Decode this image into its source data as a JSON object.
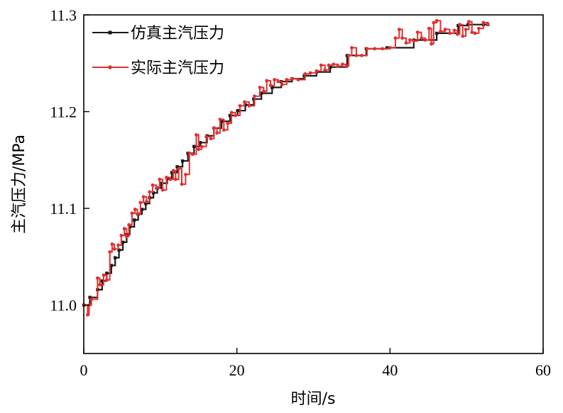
{
  "chart_data": {
    "type": "line",
    "xlabel": "时间/s",
    "ylabel": "主汽压力/MPa",
    "xlim": [
      0,
      60
    ],
    "ylim": [
      10.95,
      11.3
    ],
    "xticks": [
      0,
      20,
      40,
      60
    ],
    "yticks": [
      11.0,
      11.1,
      11.2,
      11.3
    ],
    "xtick_labels": [
      "0",
      "20",
      "40",
      "60"
    ],
    "ytick_labels": [
      "11.0",
      "11.1",
      "11.2",
      "11.3"
    ],
    "grid": false,
    "legend_position": "top-left",
    "series": [
      {
        "name": "仿真主汽压力",
        "color": "#1a1a1a",
        "step": true,
        "x": [
          0,
          0.8,
          1.8,
          2.4,
          3.0,
          3.6,
          4.1,
          4.6,
          5.1,
          5.6,
          6.0,
          6.6,
          7.1,
          7.6,
          8.1,
          8.6,
          9.1,
          9.6,
          10.1,
          10.9,
          11.5,
          12.2,
          12.9,
          13.6,
          14.4,
          15.2,
          16.1,
          17.0,
          18.0,
          19.1,
          20.1,
          21.1,
          22.2,
          23.2,
          24.6,
          25.8,
          27.2,
          28.8,
          30.4,
          32.2,
          34.4,
          36.9,
          39.6,
          43.1,
          46.1,
          48.9,
          50.2,
          52.2,
          52.8
        ],
        "y": [
          11.0,
          11.008,
          11.016,
          11.025,
          11.033,
          11.041,
          11.049,
          11.057,
          11.065,
          11.073,
          11.081,
          11.088,
          11.094,
          11.099,
          11.105,
          11.111,
          11.116,
          11.121,
          11.126,
          11.131,
          11.137,
          11.143,
          11.149,
          11.157,
          11.164,
          11.168,
          11.175,
          11.183,
          11.19,
          11.196,
          11.201,
          11.207,
          11.213,
          11.219,
          11.225,
          11.231,
          11.234,
          11.237,
          11.241,
          11.246,
          11.258,
          11.265,
          11.266,
          11.274,
          11.281,
          11.289,
          11.29,
          11.29,
          11.29
        ]
      },
      {
        "name": "实际主汽压力",
        "color": "#e03030",
        "step": true,
        "x": [
          0,
          0.5,
          0.7,
          1.0,
          1.8,
          2.1,
          2.6,
          3.0,
          3.4,
          3.7,
          4.0,
          4.5,
          4.9,
          5.3,
          5.6,
          5.9,
          6.3,
          6.7,
          7.0,
          7.4,
          7.8,
          8.2,
          8.6,
          9.0,
          9.5,
          9.9,
          10.3,
          10.8,
          11.3,
          11.7,
          12.0,
          12.4,
          12.8,
          13.3,
          13.8,
          14.2,
          14.7,
          15.0,
          15.4,
          16.0,
          16.6,
          17.0,
          17.4,
          17.8,
          18.3,
          18.8,
          19.3,
          19.8,
          20.4,
          21.0,
          21.6,
          22.3,
          23.0,
          23.5,
          23.9,
          24.4,
          24.9,
          25.4,
          25.9,
          26.5,
          27.2,
          28.0,
          28.9,
          29.6,
          30.4,
          31.0,
          31.5,
          32.0,
          32.6,
          33.2,
          33.8,
          34.3,
          34.6,
          35.0,
          35.6,
          36.3,
          37.0,
          38.0,
          39.0,
          40.0,
          40.7,
          41.2,
          41.6,
          42.1,
          42.6,
          43.1,
          43.6,
          44.1,
          44.6,
          45.1,
          45.4,
          45.7,
          46.1,
          46.6,
          47.2,
          47.8,
          48.4,
          48.8,
          49.1,
          49.5,
          49.9,
          50.3,
          50.7,
          51.1,
          51.6,
          52.2,
          52.8
        ],
        "y": [
          11.0,
          10.99,
          11.0,
          11.006,
          11.028,
          11.021,
          11.031,
          11.026,
          11.055,
          11.063,
          11.058,
          11.062,
          11.072,
          11.079,
          11.071,
          11.083,
          11.095,
          11.099,
          11.094,
          11.106,
          11.112,
          11.107,
          11.117,
          11.124,
          11.121,
          11.13,
          11.119,
          11.132,
          11.13,
          11.139,
          11.13,
          11.141,
          11.125,
          11.135,
          11.157,
          11.156,
          11.176,
          11.161,
          11.164,
          11.174,
          11.172,
          11.183,
          11.178,
          11.192,
          11.181,
          11.188,
          11.199,
          11.196,
          11.206,
          11.21,
          11.206,
          11.216,
          11.225,
          11.221,
          11.232,
          11.227,
          11.233,
          11.231,
          11.228,
          11.233,
          11.234,
          11.233,
          11.239,
          11.24,
          11.242,
          11.248,
          11.243,
          11.248,
          11.249,
          11.247,
          11.249,
          11.247,
          11.258,
          11.266,
          11.258,
          11.258,
          11.265,
          11.265,
          11.265,
          11.266,
          11.276,
          11.285,
          11.276,
          11.271,
          11.274,
          11.273,
          11.282,
          11.276,
          11.274,
          11.286,
          11.27,
          11.292,
          11.294,
          11.283,
          11.285,
          11.281,
          11.284,
          11.28,
          11.29,
          11.278,
          11.285,
          11.293,
          11.282,
          11.281,
          11.286,
          11.292,
          11.29
        ]
      }
    ]
  }
}
